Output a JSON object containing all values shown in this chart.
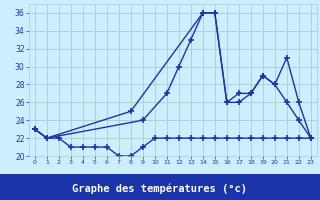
{
  "xlabel": "Graphe des températures (°c)",
  "background_color": "#cceeff",
  "grid_color": "#aacccc",
  "line_color": "#1a35aa",
  "xlim": [
    -0.5,
    23.5
  ],
  "ylim": [
    20,
    37
  ],
  "yticks": [
    20,
    22,
    24,
    26,
    28,
    30,
    32,
    34,
    36
  ],
  "xticks": [
    0,
    1,
    2,
    3,
    4,
    5,
    6,
    7,
    8,
    9,
    10,
    11,
    12,
    13,
    14,
    15,
    16,
    17,
    18,
    19,
    20,
    21,
    22,
    23
  ],
  "line1_x": [
    0,
    1,
    2,
    3,
    4,
    5,
    6,
    7,
    8,
    9,
    10,
    11,
    12,
    13,
    14,
    15,
    16,
    17,
    18,
    19,
    20,
    21,
    22,
    23
  ],
  "line1_y": [
    23,
    22,
    22,
    21,
    21,
    21,
    21,
    20,
    20,
    21,
    22,
    22,
    22,
    22,
    22,
    22,
    22,
    22,
    22,
    22,
    22,
    22,
    22,
    22
  ],
  "line2_x": [
    0,
    1,
    9,
    11,
    12,
    13,
    14,
    15,
    16,
    17,
    18,
    19,
    20,
    21,
    22,
    23
  ],
  "line2_y": [
    23,
    22,
    24,
    27,
    30,
    33,
    36,
    36,
    26,
    26,
    27,
    29,
    28,
    26,
    24,
    22
  ],
  "line3_x": [
    0,
    1,
    8,
    14,
    15,
    16,
    17,
    18,
    19,
    20,
    21,
    22,
    23
  ],
  "line3_y": [
    23,
    22,
    25,
    36,
    36,
    26,
    27,
    27,
    29,
    28,
    31,
    26,
    22
  ],
  "xlabel_bg": "#1a35aa",
  "xlabel_fg": "#ffffff"
}
